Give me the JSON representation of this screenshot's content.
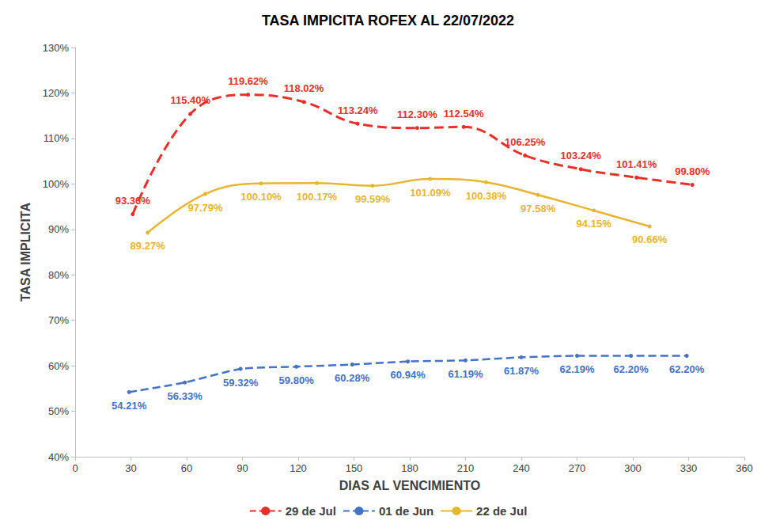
{
  "chart_data": {
    "type": "line",
    "title": "TASA IMPICITA ROFEX AL 22/07/2022",
    "x_label": "DIAS AL VENCIMIENTO",
    "y_label": "TASA IMPLICITA",
    "xlim": [
      0,
      360
    ],
    "xticks": [
      0,
      30,
      60,
      90,
      120,
      150,
      180,
      210,
      240,
      270,
      300,
      330,
      360
    ],
    "ylim": [
      40,
      130
    ],
    "yticks": [
      {
        "value": 40,
        "label": "40%"
      },
      {
        "value": 50,
        "label": "50%"
      },
      {
        "value": 60,
        "label": "60%"
      },
      {
        "value": 70,
        "label": "70%"
      },
      {
        "value": 80,
        "label": "80%"
      },
      {
        "value": 90,
        "label": "90%"
      },
      {
        "value": 100,
        "label": "100%"
      },
      {
        "value": 110,
        "label": "110%"
      },
      {
        "value": 120,
        "label": "120%"
      },
      {
        "value": 130,
        "label": "130%"
      }
    ],
    "grid": false,
    "legend": "bottom",
    "data_labels": true,
    "series": [
      {
        "name": "29 de Jul",
        "color": "#e8302a",
        "line_style": "dashed",
        "marker": "circle",
        "x": [
          31,
          62,
          93,
          123,
          152,
          184,
          209,
          242,
          272,
          302,
          332
        ],
        "values": [
          93.36,
          115.4,
          119.62,
          118.02,
          113.24,
          112.3,
          112.54,
          106.25,
          103.24,
          101.41,
          99.8
        ],
        "value_labels": [
          "93.36%",
          "115.40%",
          "119.62%",
          "118.02%",
          "113.24%",
          "112.30%",
          "112.54%",
          "106.25%",
          "103.24%",
          "101.41%",
          "99.80%"
        ]
      },
      {
        "name": "01 de Jun",
        "color": "#4472c4",
        "line_style": "dashed",
        "marker": "circle",
        "x": [
          29,
          59,
          89,
          119,
          149,
          179,
          210,
          240,
          270,
          299,
          329
        ],
        "values": [
          54.21,
          56.33,
          59.32,
          59.8,
          60.28,
          60.94,
          61.19,
          61.87,
          62.19,
          62.2,
          62.2
        ],
        "value_labels": [
          "54.21%",
          "56.33%",
          "59.32%",
          "59.80%",
          "60.28%",
          "60.94%",
          "61.19%",
          "61.87%",
          "62.19%",
          "62.20%",
          "62.20%"
        ]
      },
      {
        "name": "22 de Jul",
        "color": "#e6b532",
        "line_style": "solid",
        "marker": "circle",
        "x": [
          39,
          70,
          100,
          130,
          160,
          191,
          221,
          249,
          279,
          309
        ],
        "values": [
          89.27,
          97.79,
          100.1,
          100.17,
          99.59,
          101.09,
          100.38,
          97.58,
          94.15,
          90.66
        ],
        "value_labels": [
          "89.27%",
          "97.79%",
          "100.10%",
          "100.17%",
          "99.59%",
          "101.09%",
          "100.38%",
          "97.58%",
          "94.15%",
          "90.66%"
        ]
      }
    ]
  }
}
